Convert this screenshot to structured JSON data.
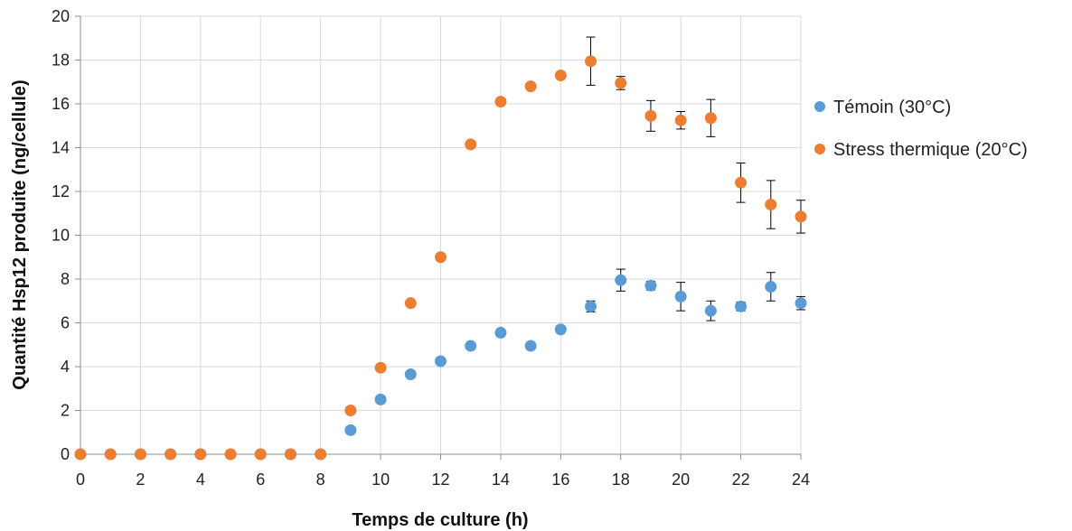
{
  "chart_data": {
    "type": "scatter",
    "xlabel": "Temps de culture (h)",
    "ylabel": "Quantité Hsp12 produite (ng/cellule)",
    "xlim": [
      0,
      24
    ],
    "ylim": [
      0,
      20
    ],
    "x_ticks": [
      0,
      2,
      4,
      6,
      8,
      10,
      12,
      14,
      16,
      18,
      20,
      22,
      24
    ],
    "y_ticks": [
      0,
      2,
      4,
      6,
      8,
      10,
      12,
      14,
      16,
      18,
      20
    ],
    "grid": true,
    "legend_position": "right",
    "series": [
      {
        "name": "Témoin (30°C)",
        "color": "#5b9bd5",
        "x": [
          0,
          1,
          2,
          3,
          4,
          5,
          6,
          7,
          8,
          9,
          10,
          11,
          12,
          13,
          14,
          15,
          16,
          17,
          18,
          19,
          20,
          21,
          22,
          23,
          24
        ],
        "y": [
          0,
          0,
          0,
          0,
          0,
          0,
          0,
          0,
          0,
          1.1,
          2.5,
          3.65,
          4.25,
          4.95,
          5.55,
          4.95,
          5.7,
          6.75,
          7.95,
          7.7,
          7.2,
          6.55,
          6.75,
          7.65,
          6.9
        ],
        "error": [
          0,
          0,
          0,
          0,
          0,
          0,
          0,
          0,
          0,
          0,
          0,
          0,
          0,
          0,
          0,
          0,
          0,
          0.25,
          0.5,
          0.2,
          0.65,
          0.45,
          0.2,
          0.65,
          0.3
        ]
      },
      {
        "name": "Stress thermique (20°C)",
        "color": "#ed7d31",
        "x": [
          0,
          1,
          2,
          3,
          4,
          5,
          6,
          7,
          8,
          9,
          10,
          11,
          12,
          13,
          14,
          15,
          16,
          17,
          18,
          19,
          20,
          21,
          22,
          23,
          24
        ],
        "y": [
          0,
          0,
          0,
          0,
          0,
          0,
          0,
          0,
          0,
          2.0,
          3.95,
          6.9,
          9.0,
          14.15,
          16.1,
          16.8,
          17.3,
          17.95,
          16.95,
          15.45,
          15.25,
          15.35,
          12.4,
          11.4,
          10.85
        ],
        "error": [
          0,
          0,
          0,
          0,
          0,
          0,
          0,
          0,
          0,
          0,
          0,
          0,
          0,
          0,
          0,
          0,
          0,
          1.1,
          0.3,
          0.7,
          0.4,
          0.85,
          0.9,
          1.1,
          0.75
        ]
      }
    ]
  }
}
